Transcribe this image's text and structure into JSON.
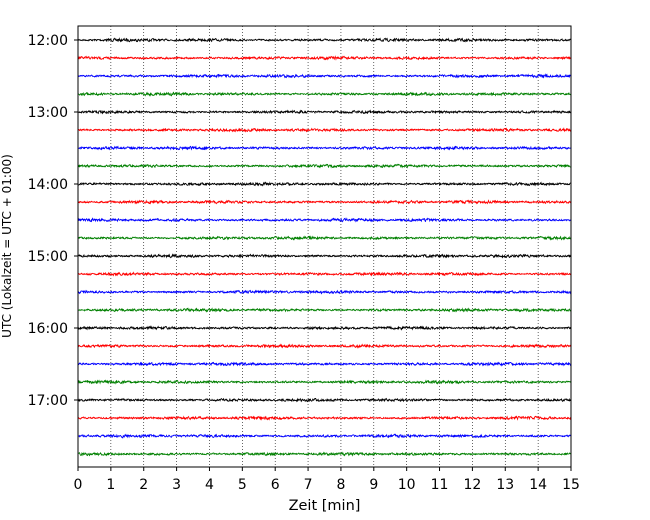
{
  "chart_data": {
    "type": "line",
    "title": "",
    "xlabel": "Zeit  [min]",
    "ylabel": "UTC (Lokalzeit = UTC + 01:00)",
    "xlim": [
      0,
      15
    ],
    "x_ticks": [
      "0",
      "1",
      "2",
      "3",
      "4",
      "5",
      "6",
      "7",
      "8",
      "9",
      "10",
      "11",
      "12",
      "13",
      "14",
      "15"
    ],
    "y_ticks": [
      "12:00",
      "13:00",
      "14:00",
      "15:00",
      "16:00",
      "17:00"
    ],
    "grid": "vertical dotted at each minute",
    "trace_interval_minutes": 15,
    "start_time": "12:00",
    "trace_count": 24,
    "trace_colors": [
      "#000000",
      "#ff0000",
      "#0000ff",
      "#008000"
    ]
  }
}
